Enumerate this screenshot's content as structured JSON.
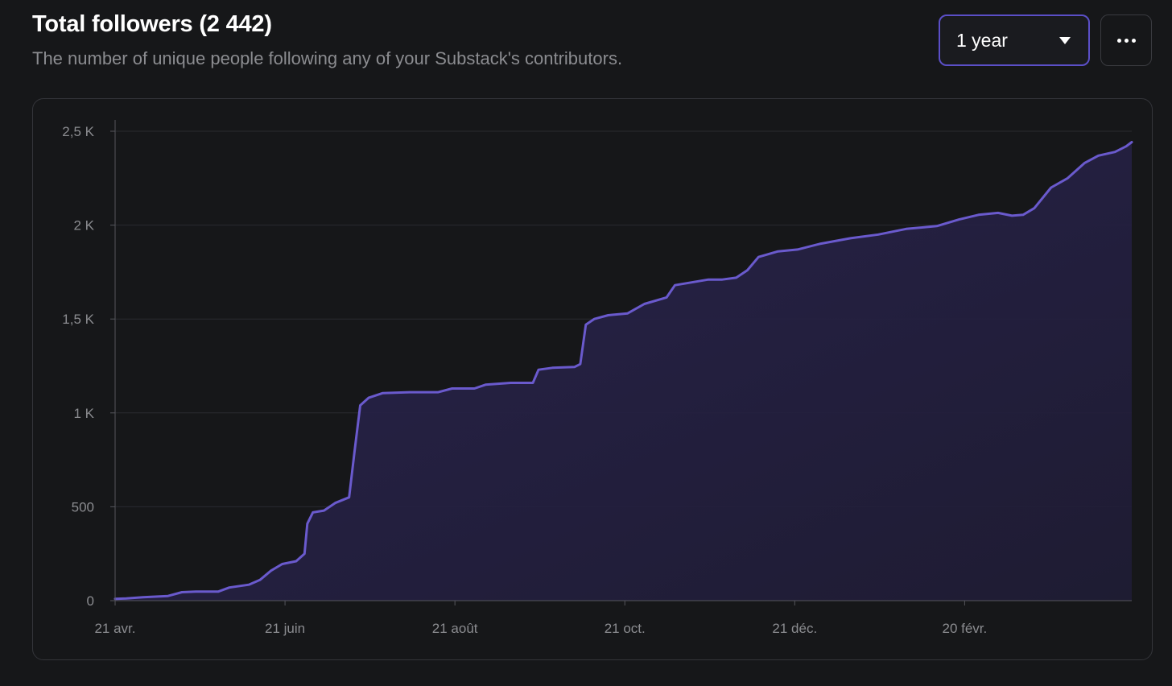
{
  "header": {
    "title": "Total followers (2 442)",
    "subtitle": "The number of unique people following any of your Substack's contributors."
  },
  "controls": {
    "range_selected": "1 year",
    "range_caret_icon": "caret-down-icon",
    "more_icon": "more-horizontal-icon"
  },
  "colors": {
    "background": "#161719",
    "line": "#6a5acd",
    "accent_border": "#5b4fc7",
    "grid": "#2a2b30",
    "text_muted": "#8b8c90"
  },
  "chart_data": {
    "type": "area",
    "ylim": [
      0,
      2500
    ],
    "y_ticks": [
      {
        "value": 0,
        "label": "0"
      },
      {
        "value": 500,
        "label": "500"
      },
      {
        "value": 1000,
        "label": "1 K"
      },
      {
        "value": 1500,
        "label": "1,5 K"
      },
      {
        "value": 2000,
        "label": "2 K"
      },
      {
        "value": 2500,
        "label": "2,5 K"
      }
    ],
    "xlim": [
      "2023-04-21",
      "2024-04-20"
    ],
    "x_ticks": [
      {
        "value": "2023-04-21",
        "label": "21 avr."
      },
      {
        "value": "2023-06-21",
        "label": "21 juin"
      },
      {
        "value": "2023-08-21",
        "label": "21 août"
      },
      {
        "value": "2023-10-21",
        "label": "21 oct."
      },
      {
        "value": "2023-12-21",
        "label": "21 déc."
      },
      {
        "value": "2024-02-20",
        "label": "20 févr."
      }
    ],
    "grid": true,
    "series": [
      {
        "points": [
          [
            "2023-04-21",
            10
          ],
          [
            "2023-04-25",
            12
          ],
          [
            "2023-05-01",
            18
          ],
          [
            "2023-05-10",
            25
          ],
          [
            "2023-05-15",
            45
          ],
          [
            "2023-05-20",
            48
          ],
          [
            "2023-05-28",
            48
          ],
          [
            "2023-06-01",
            70
          ],
          [
            "2023-06-08",
            85
          ],
          [
            "2023-06-12",
            110
          ],
          [
            "2023-06-16",
            160
          ],
          [
            "2023-06-20",
            195
          ],
          [
            "2023-06-25",
            210
          ],
          [
            "2023-06-28",
            250
          ],
          [
            "2023-06-29",
            410
          ],
          [
            "2023-07-01",
            470
          ],
          [
            "2023-07-05",
            480
          ],
          [
            "2023-07-09",
            520
          ],
          [
            "2023-07-14",
            550
          ],
          [
            "2023-07-16",
            800
          ],
          [
            "2023-07-18",
            1040
          ],
          [
            "2023-07-21",
            1080
          ],
          [
            "2023-07-26",
            1105
          ],
          [
            "2023-08-05",
            1110
          ],
          [
            "2023-08-15",
            1110
          ],
          [
            "2023-08-20",
            1130
          ],
          [
            "2023-08-28",
            1130
          ],
          [
            "2023-09-01",
            1150
          ],
          [
            "2023-09-10",
            1160
          ],
          [
            "2023-09-18",
            1160
          ],
          [
            "2023-09-20",
            1230
          ],
          [
            "2023-09-25",
            1240
          ],
          [
            "2023-10-03",
            1245
          ],
          [
            "2023-10-05",
            1260
          ],
          [
            "2023-10-07",
            1470
          ],
          [
            "2023-10-10",
            1500
          ],
          [
            "2023-10-15",
            1520
          ],
          [
            "2023-10-22",
            1530
          ],
          [
            "2023-10-28",
            1580
          ],
          [
            "2023-11-05",
            1615
          ],
          [
            "2023-11-08",
            1680
          ],
          [
            "2023-11-14",
            1695
          ],
          [
            "2023-11-20",
            1710
          ],
          [
            "2023-11-25",
            1710
          ],
          [
            "2023-11-30",
            1720
          ],
          [
            "2023-12-04",
            1760
          ],
          [
            "2023-12-08",
            1830
          ],
          [
            "2023-12-15",
            1860
          ],
          [
            "2023-12-22",
            1870
          ],
          [
            "2023-12-30",
            1900
          ],
          [
            "2024-01-10",
            1930
          ],
          [
            "2024-01-20",
            1950
          ],
          [
            "2024-01-30",
            1980
          ],
          [
            "2024-02-10",
            1995
          ],
          [
            "2024-02-18",
            2030
          ],
          [
            "2024-02-25",
            2055
          ],
          [
            "2024-03-03",
            2065
          ],
          [
            "2024-03-08",
            2050
          ],
          [
            "2024-03-12",
            2055
          ],
          [
            "2024-03-16",
            2090
          ],
          [
            "2024-03-22",
            2200
          ],
          [
            "2024-03-28",
            2250
          ],
          [
            "2024-04-03",
            2330
          ],
          [
            "2024-04-08",
            2370
          ],
          [
            "2024-04-14",
            2390
          ],
          [
            "2024-04-18",
            2420
          ],
          [
            "2024-04-20",
            2442
          ]
        ]
      }
    ]
  }
}
